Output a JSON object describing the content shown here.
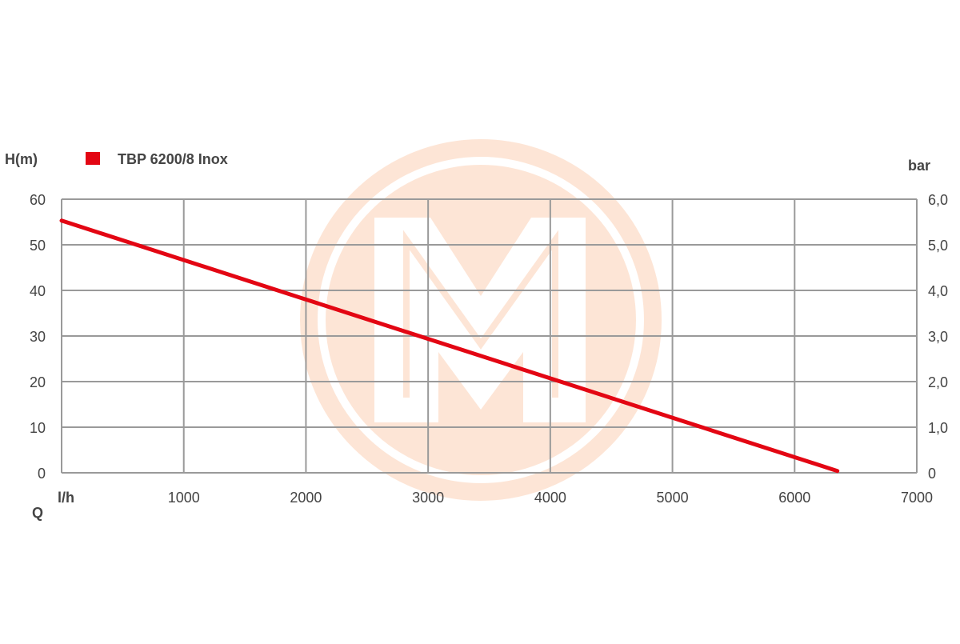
{
  "chart_data": {
    "type": "line",
    "title": "",
    "ylabel": "H(m)",
    "y2label": "bar",
    "xlabel": "Q",
    "xunit": "l/h",
    "xlim": [
      0,
      7000
    ],
    "ylim": [
      0,
      60
    ],
    "y2lim": [
      0,
      6
    ],
    "grid": true,
    "legend_placement": "top-left",
    "x_ticks": [
      "1000",
      "2000",
      "3000",
      "4000",
      "5000",
      "6000",
      "7000"
    ],
    "x_tick_values": [
      1000,
      2000,
      3000,
      4000,
      5000,
      6000,
      7000
    ],
    "y_ticks": [
      "0",
      "10",
      "20",
      "30",
      "40",
      "50",
      "60"
    ],
    "y_tick_values": [
      0,
      10,
      20,
      30,
      40,
      50,
      60
    ],
    "y2_ticks": [
      "0",
      "1,0",
      "2,0",
      "3,0",
      "4,0",
      "5,0",
      "6,0"
    ],
    "series": [
      {
        "name": "TBP 6200/8 Inox",
        "color": "#e30613",
        "x": [
          0,
          6350
        ],
        "y": [
          55.3,
          0.4
        ]
      }
    ]
  },
  "colors": {
    "grid": "#9a9a9a",
    "watermark": "#fde3d2"
  }
}
